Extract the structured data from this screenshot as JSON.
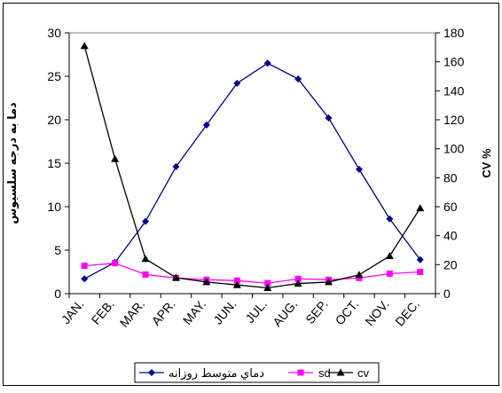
{
  "chart_data": {
    "type": "line",
    "categories": [
      "JAN.",
      "FEB.",
      "MAR.",
      "APR.",
      "MAY.",
      "JUN.",
      "JUL.",
      "AUG.",
      "SEP.",
      "OCT.",
      "NOV.",
      "DEC."
    ],
    "ylabel": "دما به درجه سلسیوس",
    "y2label": "CV %",
    "ylim": [
      0,
      30
    ],
    "y2lim": [
      0,
      180
    ],
    "yticks": [
      "0",
      "5",
      "10",
      "15",
      "20",
      "25",
      "30"
    ],
    "y2ticks": [
      "0",
      "20",
      "40",
      "60",
      "80",
      "100",
      "120",
      "140",
      "160",
      "180"
    ],
    "legend_position": "bottom",
    "series": [
      {
        "name": "دماي متوسط روزانه",
        "axis": "left",
        "color": "#00008b",
        "marker": "diamond",
        "values": [
          1.7,
          3.6,
          8.3,
          14.6,
          19.4,
          24.2,
          26.5,
          24.7,
          20.2,
          14.3,
          8.6,
          3.9
        ]
      },
      {
        "name": "sd",
        "axis": "left",
        "color": "#ff00ff",
        "marker": "square",
        "values": [
          3.2,
          3.5,
          2.2,
          1.8,
          1.6,
          1.5,
          1.2,
          1.7,
          1.6,
          1.8,
          2.3,
          2.5
        ]
      },
      {
        "name": "cv",
        "axis": "right",
        "color": "#000000",
        "marker": "triangle",
        "values": [
          171,
          93,
          24,
          11,
          8,
          6,
          4,
          7,
          8,
          13,
          26,
          59
        ]
      }
    ]
  }
}
